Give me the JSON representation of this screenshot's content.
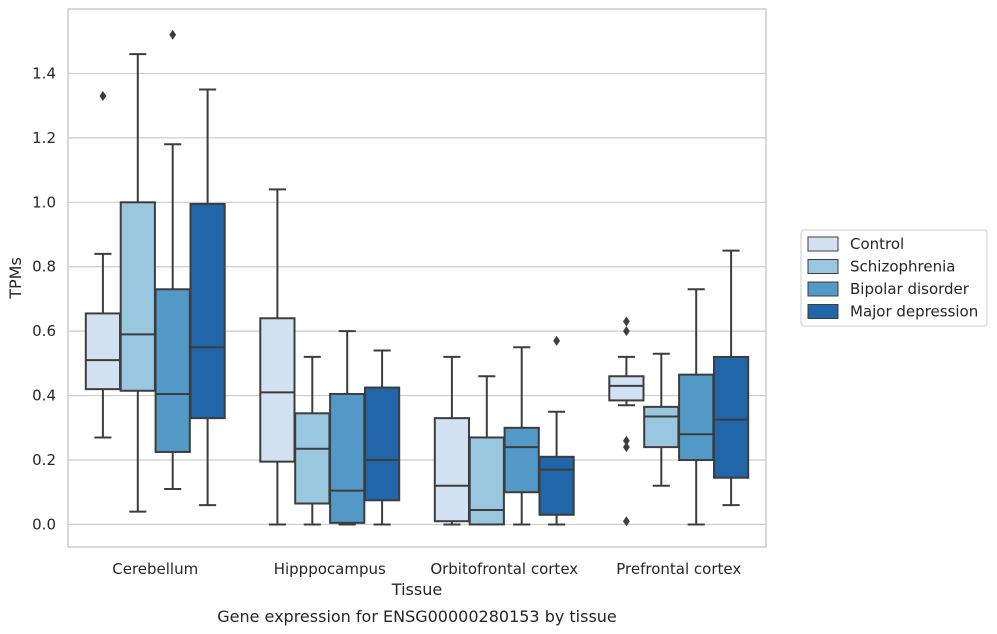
{
  "caption": "Gene expression for ENSG00000280153 by tissue",
  "chart_data": {
    "type": "box",
    "xlabel": "Tissue",
    "ylabel": "TPMs",
    "ylim": [
      -0.07,
      1.6
    ],
    "yticks": [
      0.0,
      0.2,
      0.4,
      0.6,
      0.8,
      1.0,
      1.2,
      1.4
    ],
    "ytick_labels": [
      "0.0",
      "0.2",
      "0.4",
      "0.6",
      "0.8",
      "1.0",
      "1.2",
      "1.4"
    ],
    "grid": "horizontal",
    "legend_position": "right, outside plot",
    "categories": [
      "Cerebellum",
      "Hipppocampus",
      "Orbitofrontal cortex",
      "Prefrontal cortex"
    ],
    "series": [
      {
        "name": "Control",
        "color": "#d2e2f2",
        "boxes": [
          {
            "q1": 0.42,
            "median": 0.51,
            "q3": 0.655,
            "whislo": 0.27,
            "whishi": 0.84,
            "fliers": [
              1.33
            ]
          },
          {
            "q1": 0.195,
            "median": 0.41,
            "q3": 0.64,
            "whislo": 0.0,
            "whishi": 1.04,
            "fliers": []
          },
          {
            "q1": 0.01,
            "median": 0.12,
            "q3": 0.33,
            "whislo": 0.0,
            "whishi": 0.52,
            "fliers": []
          },
          {
            "q1": 0.385,
            "median": 0.43,
            "q3": 0.46,
            "whislo": 0.37,
            "whishi": 0.52,
            "fliers": [
              0.01,
              0.24,
              0.26,
              0.6,
              0.63
            ]
          }
        ]
      },
      {
        "name": "Schizophrenia",
        "color": "#9ac7e0",
        "boxes": [
          {
            "q1": 0.415,
            "median": 0.59,
            "q3": 1.0,
            "whislo": 0.04,
            "whishi": 1.46,
            "fliers": []
          },
          {
            "q1": 0.065,
            "median": 0.235,
            "q3": 0.345,
            "whislo": 0.0,
            "whishi": 0.52,
            "fliers": []
          },
          {
            "q1": 0.0,
            "median": 0.045,
            "q3": 0.27,
            "whislo": 0.0,
            "whishi": 0.46,
            "fliers": []
          },
          {
            "q1": 0.24,
            "median": 0.335,
            "q3": 0.365,
            "whislo": 0.12,
            "whishi": 0.53,
            "fliers": []
          }
        ]
      },
      {
        "name": "Bipolar disorder",
        "color": "#5399c7",
        "boxes": [
          {
            "q1": 0.225,
            "median": 0.405,
            "q3": 0.73,
            "whislo": 0.11,
            "whishi": 1.18,
            "fliers": [
              1.52
            ]
          },
          {
            "q1": 0.005,
            "median": 0.105,
            "q3": 0.405,
            "whislo": 0.0,
            "whishi": 0.6,
            "fliers": []
          },
          {
            "q1": 0.1,
            "median": 0.24,
            "q3": 0.3,
            "whislo": 0.0,
            "whishi": 0.55,
            "fliers": []
          },
          {
            "q1": 0.2,
            "median": 0.28,
            "q3": 0.465,
            "whislo": 0.0,
            "whishi": 0.73,
            "fliers": []
          }
        ]
      },
      {
        "name": "Major depression",
        "color": "#2166a8",
        "boxes": [
          {
            "q1": 0.33,
            "median": 0.55,
            "q3": 0.995,
            "whislo": 0.06,
            "whishi": 1.35,
            "fliers": []
          },
          {
            "q1": 0.075,
            "median": 0.2,
            "q3": 0.425,
            "whislo": 0.0,
            "whishi": 0.54,
            "fliers": []
          },
          {
            "q1": 0.03,
            "median": 0.17,
            "q3": 0.21,
            "whislo": 0.0,
            "whishi": 0.35,
            "fliers": [
              0.57
            ]
          },
          {
            "q1": 0.145,
            "median": 0.325,
            "q3": 0.52,
            "whislo": 0.06,
            "whishi": 0.85,
            "fliers": []
          }
        ]
      }
    ]
  }
}
